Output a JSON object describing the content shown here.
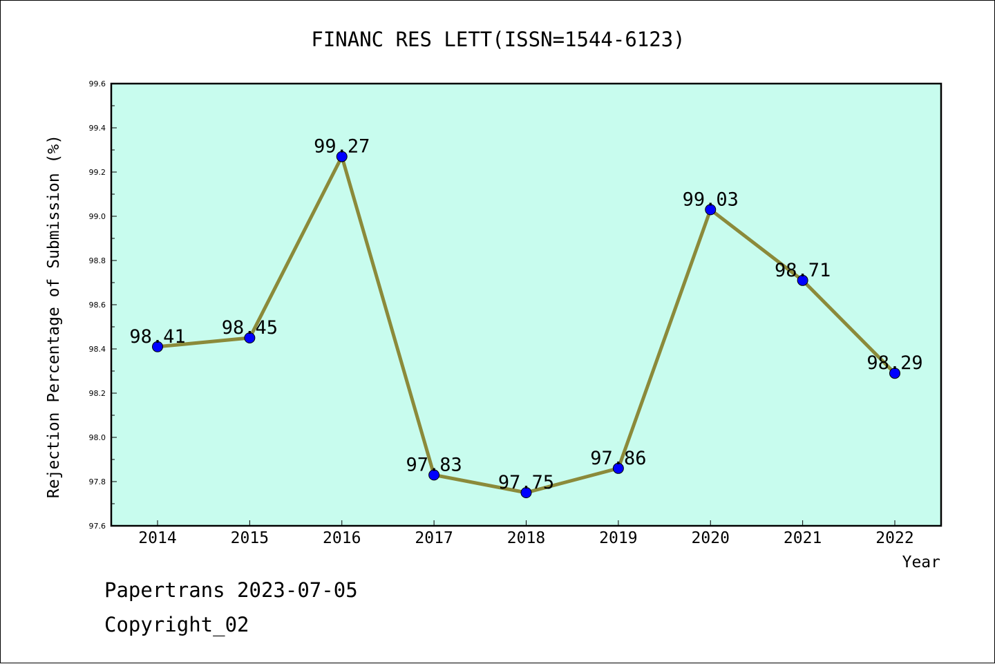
{
  "footer": {
    "line1": "Papertrans 2023-07-05",
    "line2": "Copyright_02"
  },
  "chart_data": {
    "type": "line",
    "title": "FINANC RES LETT(ISSN=1544-6123)",
    "xlabel": "Year",
    "ylabel": "Rejection Percentage of Submission (%)",
    "categories": [
      "2014",
      "2015",
      "2016",
      "2017",
      "2018",
      "2019",
      "2020",
      "2021",
      "2022"
    ],
    "series": [
      {
        "values": [
          98.41,
          98.45,
          99.27,
          97.83,
          97.75,
          97.86,
          99.03,
          98.71,
          98.29
        ]
      }
    ],
    "data_labels": [
      "98.41",
      "98.45",
      "99.27",
      "97.83",
      "97.75",
      "97.86",
      "99.03",
      "98.71",
      "98.29"
    ],
    "ylim": [
      97.6,
      99.6
    ],
    "yticks": [
      "97.6",
      "97.8",
      "98.0",
      "98.2",
      "98.4",
      "98.6",
      "98.8",
      "99.0",
      "99.2",
      "99.4",
      "99.6"
    ],
    "grid": false,
    "legend": "none",
    "colors": {
      "plot_background": "#c8fcee",
      "line": "#8b8a3a",
      "marker": "#0000ff"
    }
  }
}
